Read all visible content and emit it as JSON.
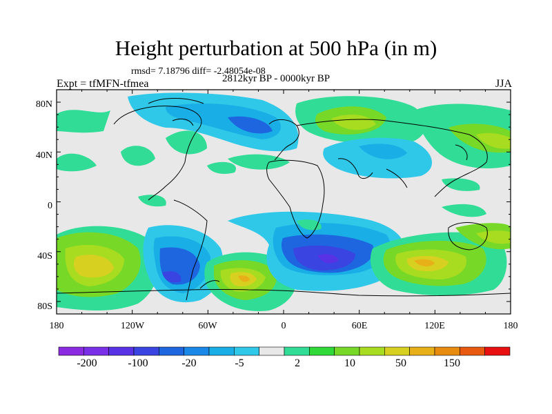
{
  "title": "Height perturbation at 500 hPa (in m)",
  "stats_line": "rmsd= 7.18796 diff= -2.48054e-08",
  "period": "2812kyr BP - 0000kyr BP",
  "experiment": "Expt = tfMFN-tfmea",
  "season": "JJA",
  "y_ticks": [
    "80N",
    "40N",
    "0",
    "40S",
    "80S"
  ],
  "x_ticks": [
    "180",
    "120W",
    "60W",
    "0",
    "60E",
    "120E",
    "180"
  ],
  "colorbar": {
    "colors": [
      "#8a2be2",
      "#7a30e6",
      "#5a32e6",
      "#3a44e0",
      "#1e66e0",
      "#1a88e6",
      "#1aaee6",
      "#30c8e8",
      "#e8e8e8",
      "#30dc96",
      "#30d838",
      "#78d828",
      "#a8dc20",
      "#d8d020",
      "#e8b018",
      "#e88c10",
      "#e85a10",
      "#e81010"
    ],
    "labels": [
      "-200",
      "-100",
      "-20",
      "-5",
      "2",
      "10",
      "50",
      "150"
    ]
  }
}
